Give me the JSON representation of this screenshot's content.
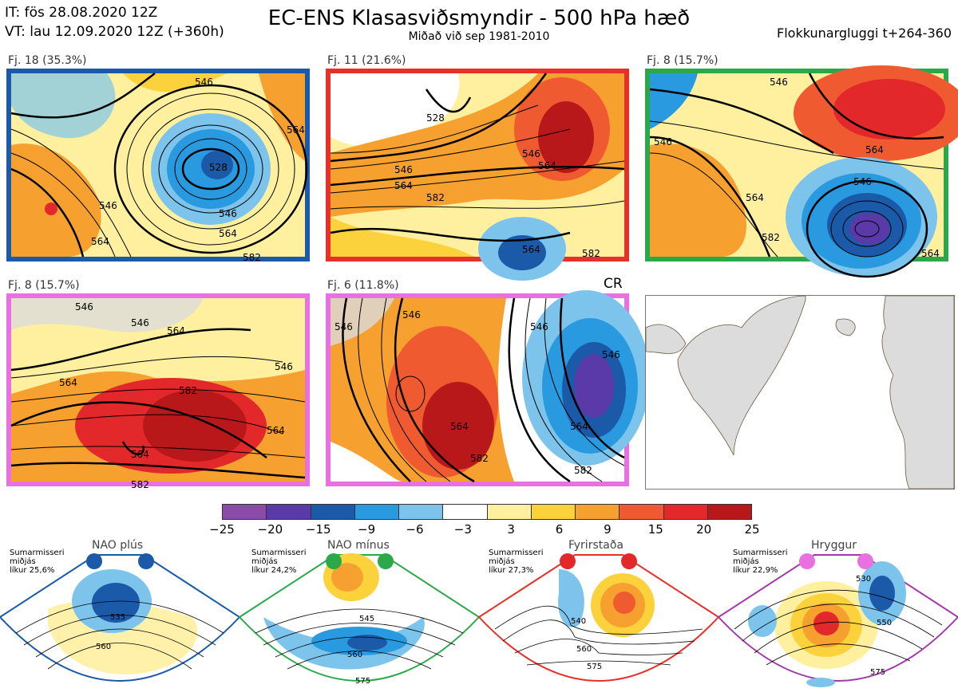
{
  "header": {
    "init_time": "IT: fös 28.08.2020 12Z",
    "valid_time": "VT: lau 12.09.2020 12Z  (+360h)",
    "title": "EC-ENS Klasasviðsmyndir - 500 hPa hæð",
    "subtitle": "Miðað við sep 1981-2010",
    "cluster_window": "Flokkunargluggi t+264-360"
  },
  "panels": [
    {
      "label": "Fj. 18 (35.3%)",
      "border_color": "#1a5aa8",
      "contours": [
        "546",
        "528",
        "546",
        "564",
        "564",
        "582",
        "546",
        "564"
      ]
    },
    {
      "label": "Fj. 11 (21.6%)",
      "border_color": "#e8302a",
      "contours": [
        "528",
        "546",
        "564",
        "546",
        "564",
        "582",
        "564",
        "582"
      ]
    },
    {
      "label": "Fj. 8 (15.7%)",
      "border_color": "#2aa84a",
      "contours": [
        "546",
        "546",
        "564",
        "546",
        "564",
        "582",
        "564"
      ]
    },
    {
      "label": "Fj. 8 (15.7%)",
      "border_color": "#e870e0",
      "contours": [
        "546",
        "546",
        "564",
        "564",
        "546",
        "582",
        "564",
        "564",
        "582"
      ]
    },
    {
      "label": "Fj. 6 (11.8%)",
      "border_color": "#e870e0",
      "contours": [
        "546",
        "546",
        "546",
        "546",
        "564",
        "564",
        "582",
        "582"
      ]
    }
  ],
  "cr_label": "CR",
  "colorbar": {
    "colors": [
      "#8a4ca8",
      "#5a3aa8",
      "#1a5aa8",
      "#2a9ae0",
      "#7cc4ec",
      "#ffffff",
      "#fff0a0",
      "#fcd23c",
      "#f6a030",
      "#ef5a30",
      "#e2282a",
      "#b8181a"
    ],
    "ticks": [
      "−25",
      "−20",
      "−15",
      "−9",
      "−6",
      "−3",
      "3",
      "6",
      "9",
      "15",
      "20",
      "25"
    ]
  },
  "regimes": [
    {
      "name": "NAO plús",
      "info": "Sumarmisseri\nmiðjás\nlíkur 25,6%",
      "color": "#1a5aa8",
      "contours": [
        "535",
        "560"
      ]
    },
    {
      "name": "NAO mínus",
      "info": "Sumarmisseri\nmiðjás\nlíkur 24,2%",
      "color": "#2aa84a",
      "contours": [
        "545",
        "560",
        "575"
      ]
    },
    {
      "name": "Fyrirstaða",
      "info": "Sumarmisseri\nmiðjás\nlíkur 27,3%",
      "color": "#e8302a",
      "contours": [
        "540",
        "560",
        "575"
      ]
    },
    {
      "name": "Hryggur",
      "info": "Sumarmisseri\nmiðjás\nlíkur 22,9%",
      "color": "#a03aa8",
      "contours": [
        "530",
        "550",
        "575"
      ]
    }
  ]
}
